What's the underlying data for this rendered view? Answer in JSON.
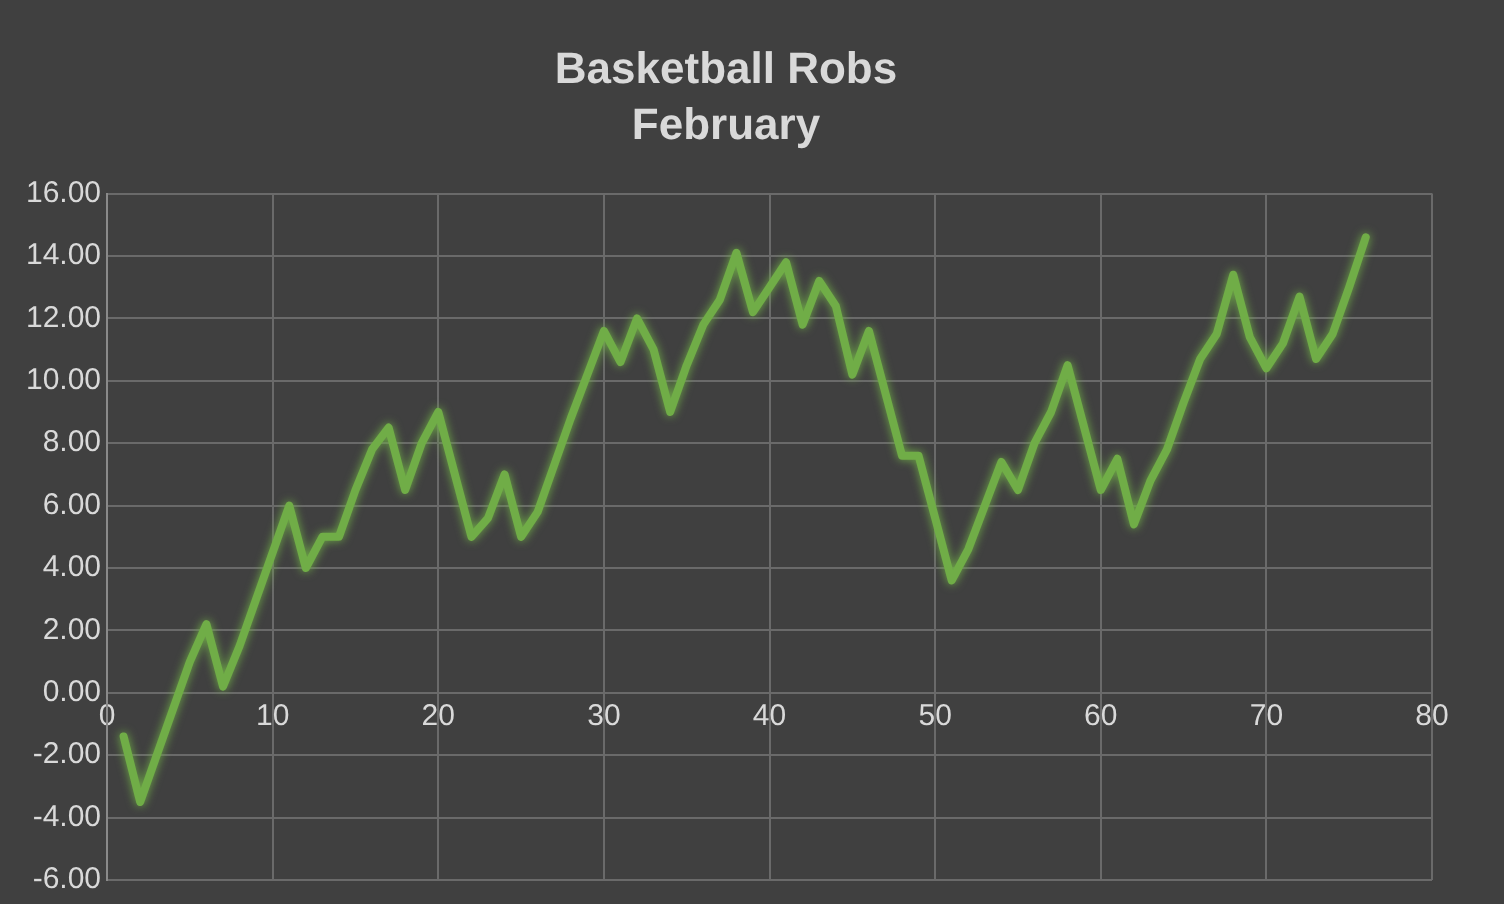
{
  "chart_data": {
    "type": "line",
    "title": "Basketball Robs",
    "subtitle": "February",
    "x": [
      1,
      2,
      3,
      4,
      5,
      6,
      7,
      8,
      9,
      10,
      11,
      12,
      13,
      14,
      15,
      16,
      17,
      18,
      19,
      20,
      21,
      22,
      23,
      24,
      25,
      26,
      27,
      28,
      29,
      30,
      31,
      32,
      33,
      34,
      35,
      36,
      37,
      38,
      39,
      40,
      41,
      42,
      43,
      44,
      45,
      46,
      47,
      48,
      49,
      50,
      51,
      52,
      53,
      54,
      55,
      56,
      57,
      58,
      59,
      60,
      61,
      62,
      63,
      64,
      65,
      66,
      67,
      68,
      69,
      70,
      71,
      72,
      73,
      74,
      75,
      76
    ],
    "series": [
      {
        "color": "#70ad47",
        "values": [
          -1.4,
          -3.5,
          -2,
          -0.5,
          1,
          2.2,
          0.2,
          1.5,
          3,
          4.5,
          6,
          4,
          5,
          5,
          6.5,
          7.8,
          8.5,
          6.5,
          8,
          9,
          7,
          5,
          5.6,
          7,
          5,
          5.8,
          7.3,
          8.8,
          10.2,
          11.6,
          10.6,
          12,
          11,
          9,
          10.5,
          11.8,
          12.6,
          14.1,
          12.2,
          13,
          13.8,
          11.8,
          13.2,
          12.4,
          10.2,
          11.6,
          9.6,
          7.6,
          7.6,
          5.6,
          3.6,
          4.6,
          6,
          7.4,
          6.5,
          8,
          9,
          10.5,
          8.5,
          6.5,
          7.5,
          5.4,
          6.8,
          7.8,
          9.3,
          10.7,
          11.5,
          13.4,
          11.4,
          10.4,
          11.2,
          12.7,
          10.7,
          11.5,
          13,
          14.6
        ]
      }
    ],
    "xlim": [
      0,
      80
    ],
    "xticks": [
      0,
      10,
      20,
      30,
      40,
      50,
      60,
      70,
      80
    ],
    "ylim": [
      -6,
      16
    ],
    "yticks": [
      {
        "value": -6,
        "label": "-6.00"
      },
      {
        "value": -4,
        "label": "-4.00"
      },
      {
        "value": -2,
        "label": "-2.00"
      },
      {
        "value": 0,
        "label": "0.00"
      },
      {
        "value": 2,
        "label": "2.00"
      },
      {
        "value": 4,
        "label": "4.00"
      },
      {
        "value": 6,
        "label": "6.00"
      },
      {
        "value": 8,
        "label": "8.00"
      },
      {
        "value": 10,
        "label": "10.00"
      },
      {
        "value": 12,
        "label": "12.00"
      },
      {
        "value": 14,
        "label": "14.00"
      },
      {
        "value": 16,
        "label": "16.00"
      }
    ],
    "grid": true,
    "legend": false,
    "marker": "none",
    "line_style": "solid"
  }
}
